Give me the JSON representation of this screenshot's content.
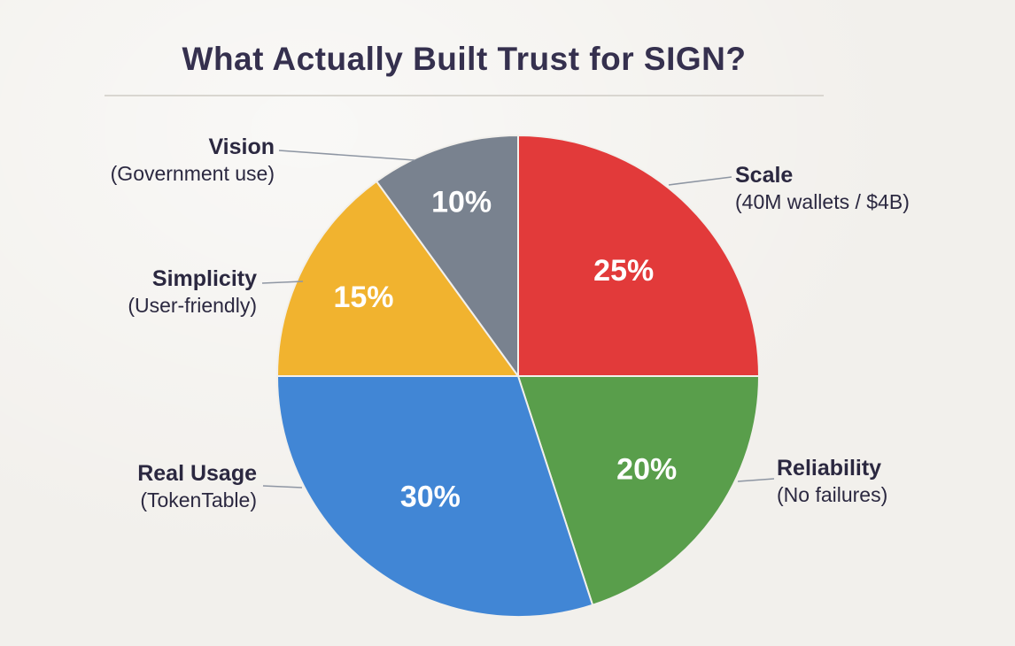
{
  "title": "What Actually Built Trust for SIGN?",
  "chart_data": {
    "type": "pie",
    "title": "What Actually Built Trust for SIGN?",
    "direction": "clockwise",
    "start_angle_deg": 0,
    "value_suffix": "%",
    "slices": [
      {
        "label": "Scale",
        "sublabel": "(40M wallets / $4B)",
        "value": 25,
        "color": "#e23a3a"
      },
      {
        "label": "Reliability",
        "sublabel": "(No failures)",
        "value": 20,
        "color": "#599e4b"
      },
      {
        "label": "Real Usage",
        "sublabel": "(TokenTable)",
        "value": 30,
        "color": "#4186d5"
      },
      {
        "label": "Simplicity",
        "sublabel": "(User-friendly)",
        "value": 15,
        "color": "#f1b32f"
      },
      {
        "label": "Vision",
        "sublabel": "(Government use)",
        "value": 10,
        "color": "#79828f"
      }
    ]
  },
  "colors": {
    "background": "#f2f0ec",
    "title": "#35304e",
    "label": "#2b2840",
    "divider": "#d9d6d0",
    "leader": "#8e96a3",
    "percent": "#ffffff",
    "slice_stroke": "#f2f0ec"
  }
}
